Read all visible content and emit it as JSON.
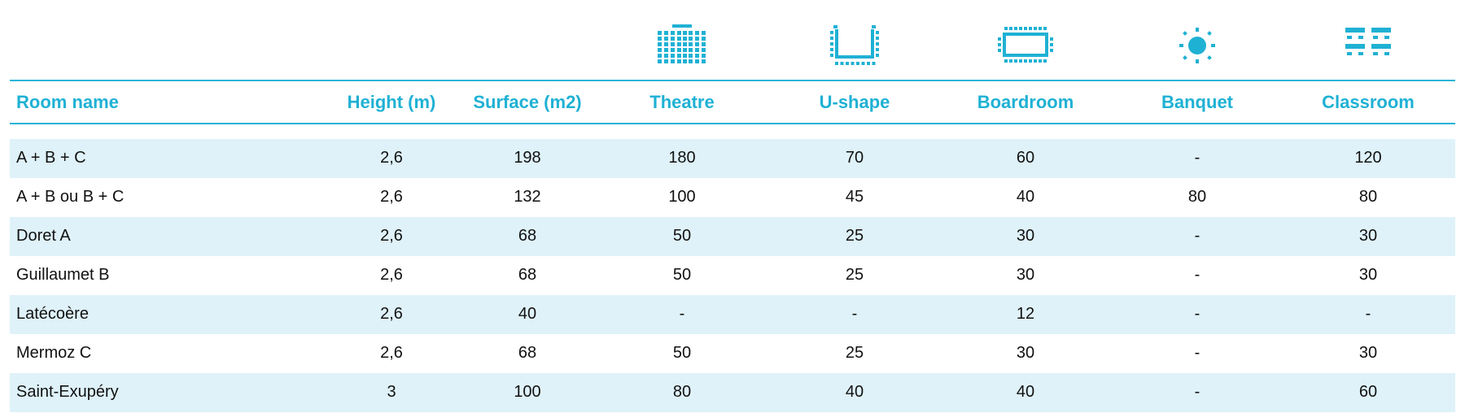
{
  "colors": {
    "accent": "#1fb1d4",
    "row_band": "#dff2f9",
    "rule": "#25b4d6"
  },
  "icons": [
    "theatre-icon",
    "u-shape-icon",
    "boardroom-icon",
    "banquet-icon",
    "classroom-icon"
  ],
  "headers": {
    "room_name": "Room name",
    "height": "Height (m)",
    "surface": "Surface (m2)",
    "theatre": "Theatre",
    "ushape": "U-shape",
    "boardroom": "Boardroom",
    "banquet": "Banquet",
    "classroom": "Classroom"
  },
  "rows": [
    {
      "name": "A + B + C",
      "height": "2,6",
      "surface": "198",
      "theatre": "180",
      "ushape": "70",
      "boardroom": "60",
      "banquet": "-",
      "classroom": "120"
    },
    {
      "name": "A + B ou B + C",
      "height": "2,6",
      "surface": "132",
      "theatre": "100",
      "ushape": "45",
      "boardroom": "40",
      "banquet": "80",
      "classroom": "80"
    },
    {
      "name": "Doret A",
      "height": "2,6",
      "surface": "68",
      "theatre": "50",
      "ushape": "25",
      "boardroom": "30",
      "banquet": "-",
      "classroom": "30"
    },
    {
      "name": "Guillaumet B",
      "height": "2,6",
      "surface": "68",
      "theatre": "50",
      "ushape": "25",
      "boardroom": "30",
      "banquet": "-",
      "classroom": "30"
    },
    {
      "name": "Latécoère",
      "height": "2,6",
      "surface": "40",
      "theatre": "-",
      "ushape": "-",
      "boardroom": "12",
      "banquet": "-",
      "classroom": "-"
    },
    {
      "name": "Mermoz C",
      "height": "2,6",
      "surface": "68",
      "theatre": "50",
      "ushape": "25",
      "boardroom": "30",
      "banquet": "-",
      "classroom": "30"
    },
    {
      "name": "Saint-Exupéry",
      "height": "3",
      "surface": "100",
      "theatre": "80",
      "ushape": "40",
      "boardroom": "40",
      "banquet": "-",
      "classroom": "60"
    }
  ]
}
